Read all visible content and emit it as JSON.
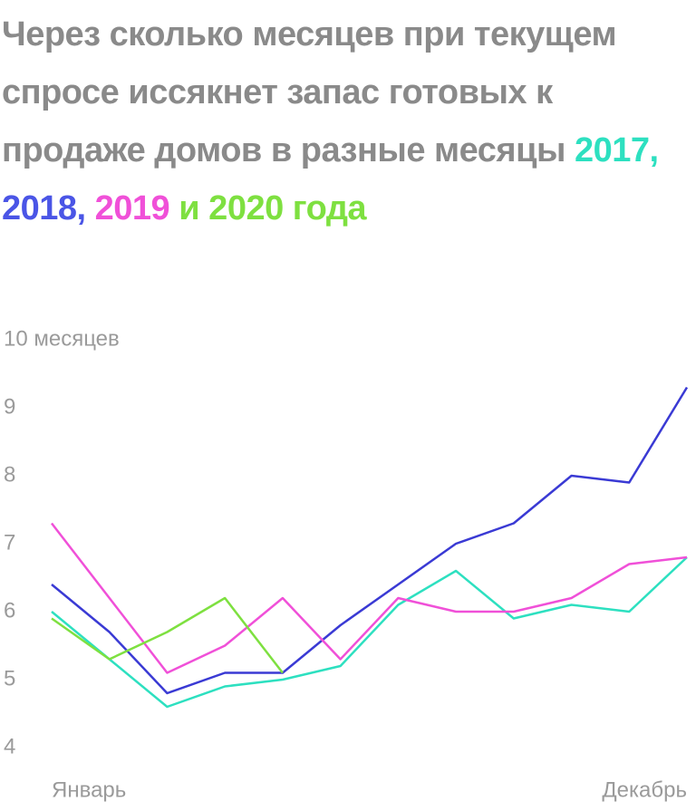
{
  "chart_data": {
    "type": "line",
    "title_parts": [
      {
        "text": "Через сколько месяцев при текущем спросе иссякнет запас готовых к продаже домов в разные месяцы"
      },
      {
        "text": "2017,",
        "color": "#2de0c0"
      },
      {
        "text": "2018,",
        "color": "#4a55e6"
      },
      {
        "text": "2019",
        "color": "#f050d8"
      },
      {
        "text": "и 2020 года",
        "color": "#7ee040"
      }
    ],
    "categories": [
      "Январь",
      null,
      null,
      null,
      null,
      null,
      null,
      null,
      null,
      null,
      null,
      "Декабрь"
    ],
    "series": [
      {
        "color": "#2de0c0",
        "values": [
          6.0,
          5.3,
          4.6,
          4.9,
          5.0,
          5.2,
          6.1,
          6.6,
          5.9,
          6.1,
          6.0,
          6.8
        ]
      },
      {
        "color": "#3a3ad4",
        "values": [
          6.4,
          5.7,
          4.8,
          5.1,
          5.1,
          5.8,
          6.4,
          7.0,
          7.3,
          8.0,
          7.9,
          9.3
        ]
      },
      {
        "color": "#f050d8",
        "values": [
          7.3,
          6.2,
          5.1,
          5.5,
          6.2,
          5.3,
          6.2,
          6.0,
          6.0,
          6.2,
          6.7,
          6.8
        ]
      },
      {
        "color": "#7ee040",
        "values": [
          5.9,
          5.3,
          5.7,
          6.2,
          5.1,
          null,
          null,
          null,
          null,
          null,
          null,
          null
        ]
      }
    ],
    "ylim": [
      4,
      10
    ],
    "yticks": [
      4,
      5,
      6,
      7,
      8,
      9,
      {
        "value": 10,
        "label": "10 месяцев"
      }
    ],
    "grid": false
  }
}
